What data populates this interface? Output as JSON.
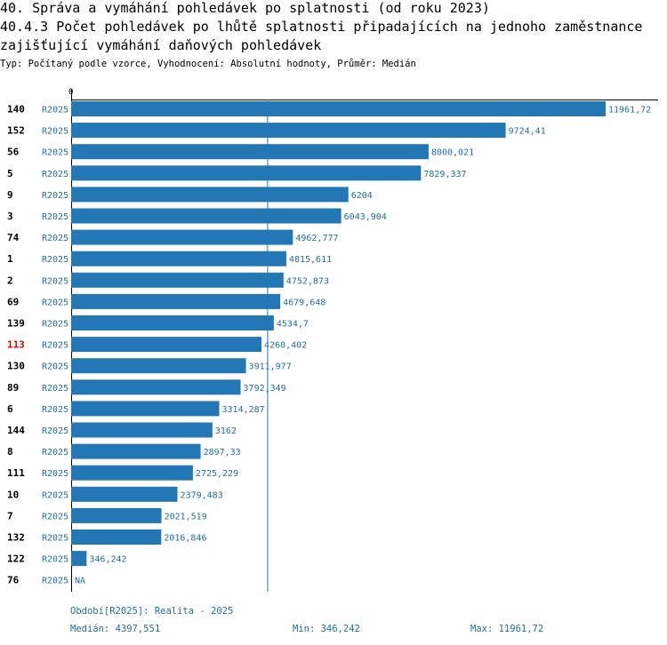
{
  "header": {
    "title_line1": "40. Správa a vymáhání pohledávek po splatnosti (od roku 2023)",
    "title_line2": "40.4.3 Počet pohledávek po lhůtě splatnosti připadajících na jednoho zaměstnance",
    "title_line3": "zajišťující vymáhání daňových pohledávek",
    "subtitle": "Typ: Počítaný podle vzorce, Vyhodnocení: Absolutní hodnoty, Průměr: Medián"
  },
  "colors": {
    "bar": "#2277b4",
    "label": "#1f6eab",
    "highlight": "#e00000"
  },
  "chart_data": {
    "type": "bar",
    "orientation": "horizontal",
    "axis_zero_label": "0",
    "xlim": [
      0,
      11961.72
    ],
    "median": 4397.551,
    "series_label": "R2025",
    "highlight_category": "113",
    "rows": [
      {
        "category": "140",
        "series": "R2025",
        "value": 11961.72,
        "label": "11961,72"
      },
      {
        "category": "152",
        "series": "R2025",
        "value": 9724.41,
        "label": "9724,41"
      },
      {
        "category": "56",
        "series": "R2025",
        "value": 8000.021,
        "label": "8000,021"
      },
      {
        "category": "5",
        "series": "R2025",
        "value": 7829.337,
        "label": "7829,337"
      },
      {
        "category": "9",
        "series": "R2025",
        "value": 6204,
        "label": "6204"
      },
      {
        "category": "3",
        "series": "R2025",
        "value": 6043.904,
        "label": "6043,904"
      },
      {
        "category": "74",
        "series": "R2025",
        "value": 4962.777,
        "label": "4962,777"
      },
      {
        "category": "1",
        "series": "R2025",
        "value": 4815.611,
        "label": "4815,611"
      },
      {
        "category": "2",
        "series": "R2025",
        "value": 4752.873,
        "label": "4752,873"
      },
      {
        "category": "69",
        "series": "R2025",
        "value": 4679.648,
        "label": "4679,648"
      },
      {
        "category": "139",
        "series": "R2025",
        "value": 4534.7,
        "label": "4534,7"
      },
      {
        "category": "113",
        "series": "R2025",
        "value": 4260.402,
        "label": "4260,402"
      },
      {
        "category": "130",
        "series": "R2025",
        "value": 3911.977,
        "label": "3911,977"
      },
      {
        "category": "89",
        "series": "R2025",
        "value": 3792.349,
        "label": "3792,349"
      },
      {
        "category": "6",
        "series": "R2025",
        "value": 3314.287,
        "label": "3314,287"
      },
      {
        "category": "144",
        "series": "R2025",
        "value": 3162,
        "label": "3162"
      },
      {
        "category": "8",
        "series": "R2025",
        "value": 2897.33,
        "label": "2897,33"
      },
      {
        "category": "111",
        "series": "R2025",
        "value": 2725.229,
        "label": "2725,229"
      },
      {
        "category": "10",
        "series": "R2025",
        "value": 2379.483,
        "label": "2379,483"
      },
      {
        "category": "7",
        "series": "R2025",
        "value": 2021.519,
        "label": "2021,519"
      },
      {
        "category": "132",
        "series": "R2025",
        "value": 2016.846,
        "label": "2016,846"
      },
      {
        "category": "122",
        "series": "R2025",
        "value": 346.242,
        "label": "346,242"
      },
      {
        "category": "76",
        "series": "R2025",
        "value": null,
        "label": "NA"
      }
    ]
  },
  "footer": {
    "period": "Období[R2025]: Realita - 2025",
    "median": "Medián: 4397,551",
    "min": "Min: 346,242",
    "max": "Max: 11961,72"
  }
}
